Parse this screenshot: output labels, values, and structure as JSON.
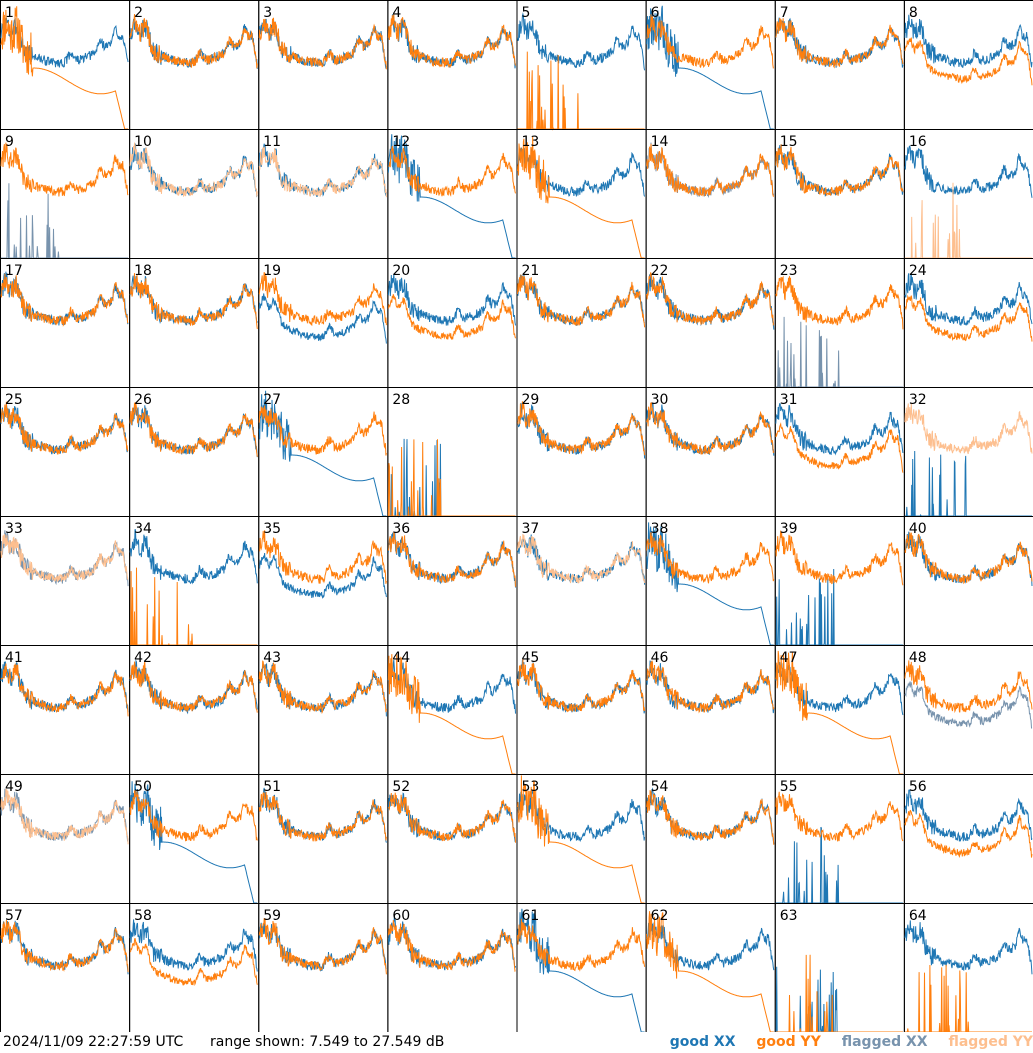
{
  "chart_data": {
    "type": "line",
    "panels": [
      "1",
      "2",
      "3",
      "4",
      "5",
      "6",
      "7",
      "8",
      "9",
      "10",
      "11",
      "12",
      "13",
      "14",
      "15",
      "16",
      "17",
      "18",
      "19",
      "20",
      "21",
      "22",
      "23",
      "24",
      "25",
      "26",
      "27",
      "28",
      "29",
      "30",
      "31",
      "32",
      "33",
      "34",
      "35",
      "36",
      "37",
      "38",
      "39",
      "40",
      "41",
      "42",
      "43",
      "44",
      "45",
      "46",
      "47",
      "48",
      "49",
      "50",
      "51",
      "52",
      "53",
      "54",
      "55",
      "56",
      "57",
      "58",
      "59",
      "60",
      "61",
      "62",
      "63",
      "64"
    ],
    "series_names": [
      "XX",
      "YY"
    ],
    "ylim": [
      7.549,
      27.549
    ],
    "colors": {
      "good_xx": "#1f77b4",
      "good_yy": "#ff7f0e",
      "flagged_xx": "#7893ad",
      "flagged_yy": "#fdbf8f"
    },
    "flags": {
      "flagged_xx_panels": [
        "9",
        "14",
        "23",
        "33",
        "48",
        "49"
      ],
      "flagged_yy_panels": [
        "10",
        "11",
        "16",
        "32",
        "33",
        "37",
        "49"
      ]
    },
    "profiles": {
      "1": {
        "xx": "normal",
        "yy": "dropped"
      },
      "5": {
        "xx": "normal",
        "yy": "dead"
      },
      "6": {
        "xx": "dropped",
        "yy": "normal"
      },
      "8": {
        "xx": "normal",
        "yy": "low"
      },
      "9": {
        "xx": "dead",
        "yy": "normal"
      },
      "12": {
        "xx": "dropped",
        "yy": "normal"
      },
      "13": {
        "xx": "normal",
        "yy": "dropped"
      },
      "16": {
        "xx": "normal",
        "yy": "dead"
      },
      "19": {
        "xx": "low",
        "yy": "normal"
      },
      "20": {
        "xx": "normal",
        "yy": "low"
      },
      "23": {
        "xx": "dead",
        "yy": "normal"
      },
      "24": {
        "xx": "normal",
        "yy": "low"
      },
      "27": {
        "xx": "dropped",
        "yy": "normal"
      },
      "28": {
        "xx": "dead",
        "yy": "dead"
      },
      "31": {
        "xx": "normal",
        "yy": "low"
      },
      "32": {
        "xx": "dead",
        "yy": "normal"
      },
      "34": {
        "xx": "normal",
        "yy": "dead"
      },
      "35": {
        "xx": "low",
        "yy": "normal"
      },
      "38": {
        "xx": "dropped",
        "yy": "normal"
      },
      "39": {
        "xx": "dead",
        "yy": "normal"
      },
      "44": {
        "xx": "normal",
        "yy": "dropped"
      },
      "47": {
        "xx": "normal",
        "yy": "dropped"
      },
      "48": {
        "xx": "low",
        "yy": "normal"
      },
      "50": {
        "xx": "dropped",
        "yy": "normal"
      },
      "53": {
        "xx": "normal",
        "yy": "dropped"
      },
      "55": {
        "xx": "dead",
        "yy": "normal"
      },
      "56": {
        "xx": "normal",
        "yy": "low"
      },
      "58": {
        "xx": "normal",
        "yy": "low"
      },
      "61": {
        "xx": "dropped",
        "yy": "normal"
      },
      "62": {
        "xx": "normal",
        "yy": "dropped"
      },
      "63": {
        "xx": "dead",
        "yy": "dead"
      },
      "64": {
        "xx": "normal",
        "yy": "dead"
      }
    }
  },
  "footer": {
    "timestamp": "2024/11/09 22:27:59 UTC",
    "range": "range shown: 7.549 to 27.549 dB"
  },
  "legend": {
    "good_xx": "good XX",
    "good_yy": "good YY",
    "flagged_xx": "flagged XX",
    "flagged_yy": "flagged YY"
  }
}
